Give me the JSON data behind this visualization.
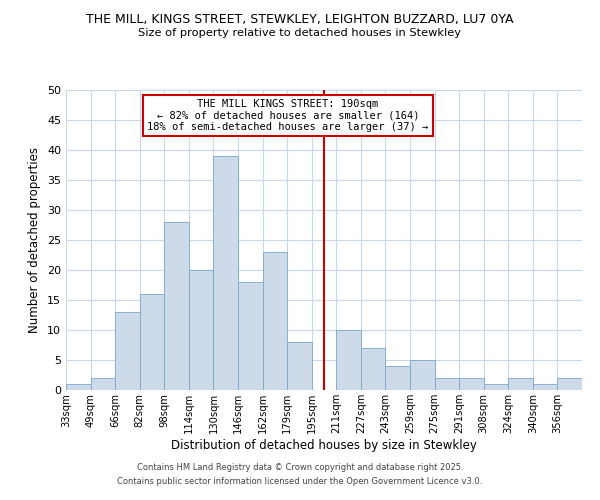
{
  "title_line1": "THE MILL, KINGS STREET, STEWKLEY, LEIGHTON BUZZARD, LU7 0YA",
  "title_line2": "Size of property relative to detached houses in Stewkley",
  "xlabel": "Distribution of detached houses by size in Stewkley",
  "ylabel": "Number of detached properties",
  "bin_labels": [
    "33sqm",
    "49sqm",
    "66sqm",
    "82sqm",
    "98sqm",
    "114sqm",
    "130sqm",
    "146sqm",
    "162sqm",
    "179sqm",
    "195sqm",
    "211sqm",
    "227sqm",
    "243sqm",
    "259sqm",
    "275sqm",
    "291sqm",
    "308sqm",
    "324sqm",
    "340sqm",
    "356sqm"
  ],
  "bin_edges": [
    0,
    1,
    2,
    3,
    4,
    5,
    6,
    7,
    8,
    9,
    10,
    11,
    12,
    13,
    14,
    15,
    16,
    17,
    18,
    19,
    20,
    21
  ],
  "counts": [
    1,
    2,
    13,
    16,
    28,
    20,
    39,
    18,
    23,
    8,
    0,
    10,
    7,
    4,
    5,
    2,
    2,
    1,
    2,
    1,
    2
  ],
  "bar_color": "#cddaea",
  "bar_edgecolor": "#7aa8c8",
  "vline_x": 10.5,
  "vline_color": "#cc0000",
  "ylim": [
    0,
    50
  ],
  "yticks": [
    0,
    5,
    10,
    15,
    20,
    25,
    30,
    35,
    40,
    45,
    50
  ],
  "annotation_title": "THE MILL KINGS STREET: 190sqm",
  "annotation_line1": "← 82% of detached houses are smaller (164)",
  "annotation_line2": "18% of semi-detached houses are larger (37) →",
  "annotation_box_color": "#ffffff",
  "annotation_box_edgecolor": "#cc0000",
  "footer_line1": "Contains HM Land Registry data © Crown copyright and database right 2025.",
  "footer_line2": "Contains public sector information licensed under the Open Government Licence v3.0.",
  "background_color": "#ffffff",
  "grid_color": "#c8d8e8"
}
